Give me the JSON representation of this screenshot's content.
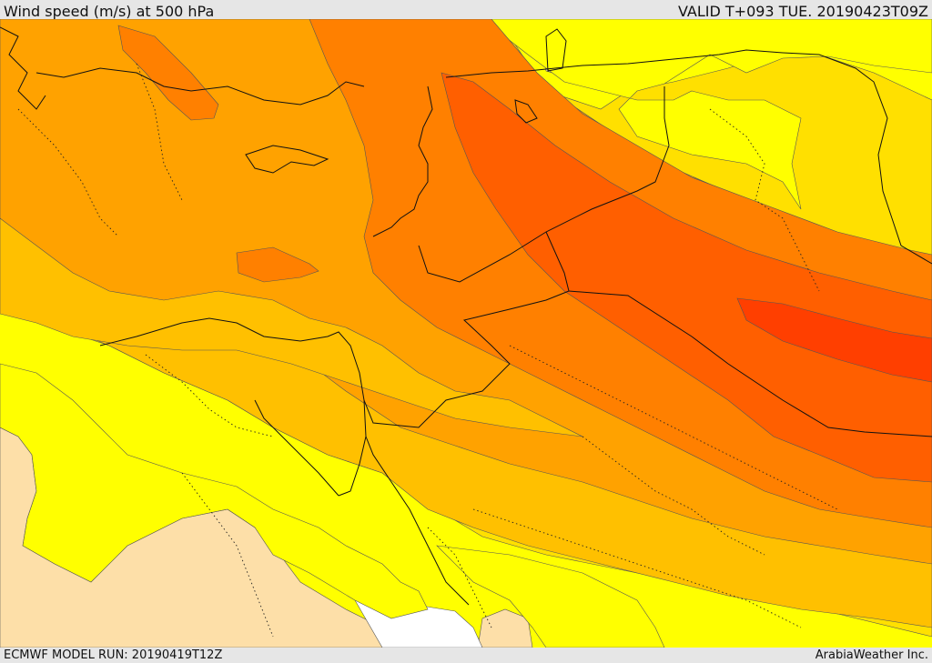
{
  "header": {
    "title": "Wind speed (m/s) at 500 hPa",
    "valid": "VALID T+093 TUE. 20190423T09Z"
  },
  "footer": {
    "model_run": "ECMWF MODEL RUN: 20190419T12Z",
    "credit": "ArabiaWeather Inc."
  },
  "map": {
    "field": "wind speed at 500 hPa",
    "colors": {
      "lowest": "#ffffff",
      "very_low": "#fddfa8",
      "low": "#ffff00",
      "mid_low": "#ffe000",
      "mid": "#ffc000",
      "mid_high": "#ffa200",
      "high": "#ff8000",
      "very_high": "#ff5f00",
      "max": "#ff3f00"
    }
  }
}
